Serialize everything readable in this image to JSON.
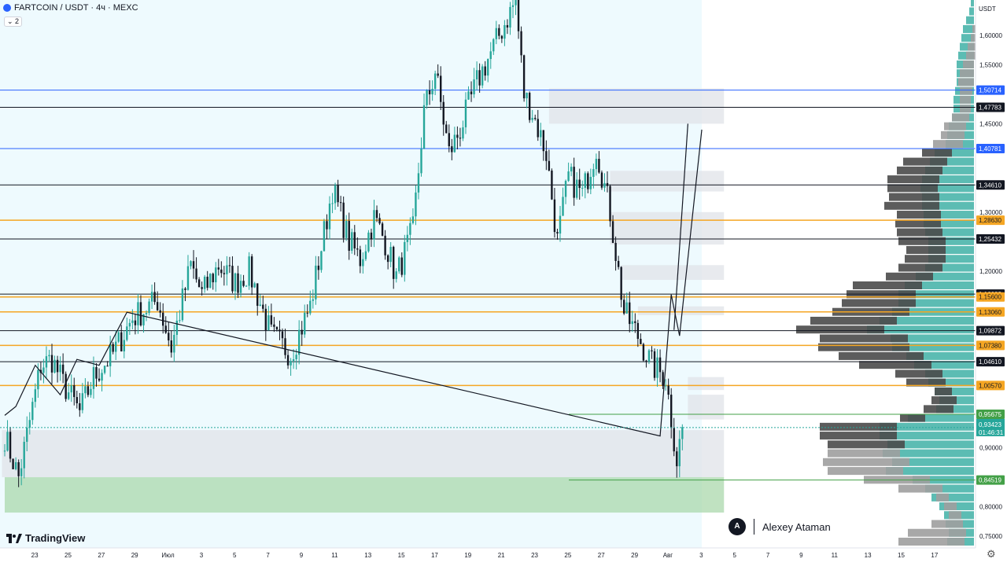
{
  "header": {
    "symbol_line": "FARTCOIN / USDT · 4ч · MEXC",
    "indicator_toggle": "⌄ 2"
  },
  "axis": {
    "currency_label": "USDT",
    "logo": "TradingView",
    "settings_icon": "gear-icon"
  },
  "author": {
    "name": "Alexey Ataman"
  },
  "colors": {
    "up": "#26a69a",
    "down": "#131722",
    "blue_line": "#2962ff",
    "orange_line": "#f5a623",
    "green_line": "#43a047",
    "black_line": "#131722",
    "zone_gray": "#e0e3e8",
    "zone_green": "#a5d6a7",
    "bg_highlight": "#eefafe",
    "vp_teal": "#26a69a",
    "vp_dark": "#4a4a4a",
    "vp_gray": "#9e9e9e"
  },
  "chart_data": {
    "type": "candlestick",
    "symbol": "FARTCOIN / USDT",
    "timeframe": "4ч",
    "exchange": "MEXC",
    "ylim": [
      0.73,
      1.66
    ],
    "y_ticks": [
      {
        "value": 1.6,
        "label": "1,60000"
      },
      {
        "value": 1.55,
        "label": "1,55000"
      },
      {
        "value": 1.45,
        "label": "1,45000"
      },
      {
        "value": 1.3,
        "label": "1,30000"
      },
      {
        "value": 1.2,
        "label": "1,20000"
      },
      {
        "value": 0.9,
        "label": "0,90000"
      },
      {
        "value": 0.8,
        "label": "0,80000"
      },
      {
        "value": 0.75,
        "label": "0,75000"
      }
    ],
    "x_ticks": [
      {
        "label": "23",
        "idx": 4
      },
      {
        "label": "25",
        "idx": 16
      },
      {
        "label": "27",
        "idx": 28
      },
      {
        "label": "29",
        "idx": 40
      },
      {
        "label": "Июл",
        "idx": 52
      },
      {
        "label": "3",
        "idx": 64
      },
      {
        "label": "5",
        "idx": 76
      },
      {
        "label": "7",
        "idx": 88
      },
      {
        "label": "9",
        "idx": 100
      },
      {
        "label": "11",
        "idx": 112
      },
      {
        "label": "13",
        "idx": 124
      },
      {
        "label": "15",
        "idx": 136
      },
      {
        "label": "17",
        "idx": 148
      },
      {
        "label": "19",
        "idx": 160
      },
      {
        "label": "21",
        "idx": 172
      },
      {
        "label": "23",
        "idx": 184
      },
      {
        "label": "25",
        "idx": 196
      },
      {
        "label": "27",
        "idx": 208
      },
      {
        "label": "29",
        "idx": 220
      },
      {
        "label": "Авг",
        "idx": 232
      },
      {
        "label": "3",
        "idx": 244
      },
      {
        "label": "5",
        "idx": 256
      },
      {
        "label": "7",
        "idx": 268
      },
      {
        "label": "9",
        "idx": 280
      },
      {
        "label": "11",
        "idx": 292
      },
      {
        "label": "13",
        "idx": 304
      },
      {
        "label": "15",
        "idx": 316
      },
      {
        "label": "17",
        "idx": 328
      }
    ],
    "waypoints": [
      [
        0,
        0.92
      ],
      [
        5,
        0.85
      ],
      [
        13,
        1.04
      ],
      [
        17,
        1.05
      ],
      [
        21,
        1.01
      ],
      [
        27,
        0.96
      ],
      [
        32,
        1.02
      ],
      [
        39,
        1.06
      ],
      [
        46,
        1.12
      ],
      [
        55,
        1.15
      ],
      [
        60,
        1.07
      ],
      [
        67,
        1.21
      ],
      [
        71,
        1.16
      ],
      [
        77,
        1.21
      ],
      [
        83,
        1.18
      ],
      [
        88,
        1.2
      ],
      [
        96,
        1.09
      ],
      [
        103,
        1.06
      ],
      [
        110,
        1.14
      ],
      [
        118,
        1.34
      ],
      [
        124,
        1.25
      ],
      [
        128,
        1.22
      ],
      [
        133,
        1.29
      ],
      [
        137,
        1.25
      ],
      [
        141,
        1.19
      ],
      [
        147,
        1.27
      ],
      [
        151,
        1.47
      ],
      [
        155,
        1.54
      ],
      [
        160,
        1.4
      ],
      [
        164,
        1.44
      ],
      [
        170,
        1.52
      ],
      [
        176,
        1.58
      ],
      [
        184,
        1.66
      ],
      [
        187,
        1.5
      ],
      [
        190,
        1.47
      ],
      [
        195,
        1.4
      ],
      [
        199,
        1.25
      ],
      [
        203,
        1.36
      ],
      [
        208,
        1.33
      ],
      [
        213,
        1.41
      ],
      [
        218,
        1.3
      ],
      [
        223,
        1.13
      ],
      [
        228,
        1.09
      ],
      [
        233,
        1.04
      ],
      [
        238,
        1.02
      ],
      [
        242,
        0.88
      ],
      [
        244,
        0.935
      ]
    ],
    "horizontal_levels": [
      {
        "value": 1.50714,
        "label": "1,50714",
        "color": "blue"
      },
      {
        "value": 1.47783,
        "label": "1,47783",
        "color": "black"
      },
      {
        "value": 1.40781,
        "label": "1,40781",
        "color": "blue"
      },
      {
        "value": 1.3461,
        "label": "1,34610",
        "color": "black"
      },
      {
        "value": 1.2863,
        "label": "1,28630",
        "color": "orange"
      },
      {
        "value": 1.25432,
        "label": "1,25432",
        "color": "black"
      },
      {
        "value": 1.16083,
        "label": "1,16083",
        "color": "black"
      },
      {
        "value": 1.156,
        "label": "1,15600",
        "color": "orange"
      },
      {
        "value": 1.1306,
        "label": "1,13060",
        "color": "orange"
      },
      {
        "value": 1.09872,
        "label": "1,09872",
        "color": "black"
      },
      {
        "value": 1.0738,
        "label": "1,07380",
        "color": "orange"
      },
      {
        "value": 1.0461,
        "label": "1,04610",
        "color": "black"
      },
      {
        "value": 1.0057,
        "label": "1,00570",
        "color": "orange"
      },
      {
        "value": 0.95675,
        "label": "0,95675",
        "color": "green",
        "partial": true
      },
      {
        "value": 0.84519,
        "label": "0,84519",
        "color": "green",
        "partial": true
      }
    ],
    "current_price": {
      "value": 0.93423,
      "label": "0,93423",
      "countdown": "01:46:31"
    },
    "zones": [
      {
        "from_idx": -1,
        "to_idx": 259,
        "top": 0.93,
        "bottom": 0.85,
        "kind": "gray"
      },
      {
        "from_idx": 0,
        "to_idx": 259,
        "top": 0.85,
        "bottom": 0.79,
        "kind": "green"
      },
      {
        "from_idx": 196,
        "to_idx": 259,
        "top": 1.51,
        "bottom": 1.45,
        "kind": "gray"
      },
      {
        "from_idx": 218,
        "to_idx": 259,
        "top": 1.37,
        "bottom": 1.335,
        "kind": "gray"
      },
      {
        "from_idx": 218,
        "to_idx": 259,
        "top": 1.3,
        "bottom": 1.245,
        "kind": "gray"
      },
      {
        "from_idx": 222,
        "to_idx": 259,
        "top": 1.21,
        "bottom": 1.185,
        "kind": "gray"
      },
      {
        "from_idx": 228,
        "to_idx": 259,
        "top": 1.14,
        "bottom": 1.125,
        "kind": "gray"
      },
      {
        "from_idx": 246,
        "to_idx": 259,
        "top": 1.02,
        "bottom": 0.998,
        "kind": "gray"
      },
      {
        "from_idx": 246,
        "to_idx": 259,
        "top": 0.99,
        "bottom": 0.948,
        "kind": "gray"
      }
    ],
    "highlight_until_idx": 251,
    "projection_path": [
      [
        0,
        0.955
      ],
      [
        4,
        0.97
      ],
      [
        11,
        1.04
      ],
      [
        20,
        0.99
      ],
      [
        26,
        1.05
      ],
      [
        34,
        1.04
      ],
      [
        44,
        1.13
      ],
      [
        236,
        0.92
      ],
      [
        240,
        1.16
      ],
      [
        243,
        1.09
      ],
      [
        251,
        1.44
      ]
    ],
    "projection_path_2": [
      [
        241,
        1.1
      ],
      [
        246,
        1.45
      ]
    ],
    "volume_profile": [
      {
        "price": 1.655,
        "teal": 4,
        "dark": 0,
        "gray": 4
      },
      {
        "price": 1.64,
        "teal": 6,
        "dark": 0,
        "gray": 6
      },
      {
        "price": 1.625,
        "teal": 10,
        "dark": 0,
        "gray": 8
      },
      {
        "price": 1.61,
        "teal": 14,
        "dark": 0,
        "gray": 10
      },
      {
        "price": 1.595,
        "teal": 16,
        "dark": 0,
        "gray": 10
      },
      {
        "price": 1.58,
        "teal": 18,
        "dark": 0,
        "gray": 12
      },
      {
        "price": 1.565,
        "teal": 20,
        "dark": 0,
        "gray": 12
      },
      {
        "price": 1.55,
        "teal": 22,
        "dark": 0,
        "gray": 14
      },
      {
        "price": 1.535,
        "teal": 22,
        "dark": 0,
        "gray": 18
      },
      {
        "price": 1.52,
        "teal": 22,
        "dark": 0,
        "gray": 20
      },
      {
        "price": 1.505,
        "teal": 24,
        "dark": 0,
        "gray": 16
      },
      {
        "price": 1.49,
        "teal": 26,
        "dark": 0,
        "gray": 14
      },
      {
        "price": 1.475,
        "teal": 26,
        "dark": 0,
        "gray": 14
      },
      {
        "price": 1.46,
        "teal": 28,
        "dark": 0,
        "gray": 22
      },
      {
        "price": 1.445,
        "teal": 32,
        "dark": 0,
        "gray": 28
      },
      {
        "price": 1.43,
        "teal": 34,
        "dark": 0,
        "gray": 30
      },
      {
        "price": 1.415,
        "teal": 36,
        "dark": 0,
        "gray": 38
      },
      {
        "price": 1.4,
        "teal": 50,
        "dark": 38,
        "gray": 0
      },
      {
        "price": 1.385,
        "teal": 56,
        "dark": 56,
        "gray": 0
      },
      {
        "price": 1.37,
        "teal": 62,
        "dark": 58,
        "gray": 0
      },
      {
        "price": 1.355,
        "teal": 66,
        "dark": 66,
        "gray": 0
      },
      {
        "price": 1.34,
        "teal": 68,
        "dark": 64,
        "gray": 0
      },
      {
        "price": 1.325,
        "teal": 66,
        "dark": 64,
        "gray": 0
      },
      {
        "price": 1.31,
        "teal": 66,
        "dark": 70,
        "gray": 0
      },
      {
        "price": 1.295,
        "teal": 64,
        "dark": 56,
        "gray": 0
      },
      {
        "price": 1.28,
        "teal": 64,
        "dark": 58,
        "gray": 0
      },
      {
        "price": 1.265,
        "teal": 62,
        "dark": 58,
        "gray": 0
      },
      {
        "price": 1.25,
        "teal": 58,
        "dark": 60,
        "gray": 0
      },
      {
        "price": 1.235,
        "teal": 58,
        "dark": 50,
        "gray": 0
      },
      {
        "price": 1.22,
        "teal": 58,
        "dark": 52,
        "gray": 0
      },
      {
        "price": 1.205,
        "teal": 62,
        "dark": 56,
        "gray": 0
      },
      {
        "price": 1.19,
        "teal": 74,
        "dark": 60,
        "gray": 0
      },
      {
        "price": 1.175,
        "teal": 88,
        "dark": 88,
        "gray": 0
      },
      {
        "price": 1.16,
        "teal": 96,
        "dark": 88,
        "gray": 0
      },
      {
        "price": 1.145,
        "teal": 96,
        "dark": 94,
        "gray": 0
      },
      {
        "price": 1.13,
        "teal": 104,
        "dark": 98,
        "gray": 0
      },
      {
        "price": 1.115,
        "teal": 120,
        "dark": 110,
        "gray": 0
      },
      {
        "price": 1.1,
        "teal": 136,
        "dark": 112,
        "gray": 0
      },
      {
        "price": 1.085,
        "teal": 106,
        "dark": 112,
        "gray": 0
      },
      {
        "price": 1.07,
        "teal": 104,
        "dark": 116,
        "gray": 0
      },
      {
        "price": 1.055,
        "teal": 86,
        "dark": 108,
        "gray": 0
      },
      {
        "price": 1.04,
        "teal": 76,
        "dark": 92,
        "gray": 0
      },
      {
        "price": 1.025,
        "teal": 62,
        "dark": 60,
        "gray": 0
      },
      {
        "price": 1.01,
        "teal": 58,
        "dark": 50,
        "gray": 0
      },
      {
        "price": 0.995,
        "teal": 50,
        "dark": 22,
        "gray": 0
      },
      {
        "price": 0.98,
        "teal": 44,
        "dark": 32,
        "gray": 0
      },
      {
        "price": 0.965,
        "teal": 48,
        "dark": 38,
        "gray": 0
      },
      {
        "price": 0.95,
        "teal": 84,
        "dark": 32,
        "gray": 0
      },
      {
        "price": 0.935,
        "teal": 120,
        "dark": 98,
        "gray": 0
      },
      {
        "price": 0.92,
        "teal": 120,
        "dark": 98,
        "gray": 0
      },
      {
        "price": 0.905,
        "teal": 110,
        "dark": 98,
        "gray": 0
      },
      {
        "price": 0.89,
        "teal": 116,
        "dark": 0,
        "gray": 92
      },
      {
        "price": 0.875,
        "teal": 104,
        "dark": 0,
        "gray": 110
      },
      {
        "price": 0.86,
        "teal": 112,
        "dark": 0,
        "gray": 96
      },
      {
        "price": 0.845,
        "teal": 78,
        "dark": 0,
        "gray": 84
      },
      {
        "price": 0.83,
        "teal": 62,
        "dark": 0,
        "gray": 56
      },
      {
        "price": 0.815,
        "teal": 54,
        "dark": 0,
        "gray": 16
      },
      {
        "price": 0.8,
        "teal": 44,
        "dark": 0,
        "gray": 16
      },
      {
        "price": 0.785,
        "teal": 38,
        "dark": 0,
        "gray": 16
      },
      {
        "price": 0.77,
        "teal": 36,
        "dark": 0,
        "gray": 40
      },
      {
        "price": 0.755,
        "teal": 32,
        "dark": 0,
        "gray": 74
      },
      {
        "price": 0.74,
        "teal": 34,
        "dark": 0,
        "gray": 84
      }
    ]
  }
}
